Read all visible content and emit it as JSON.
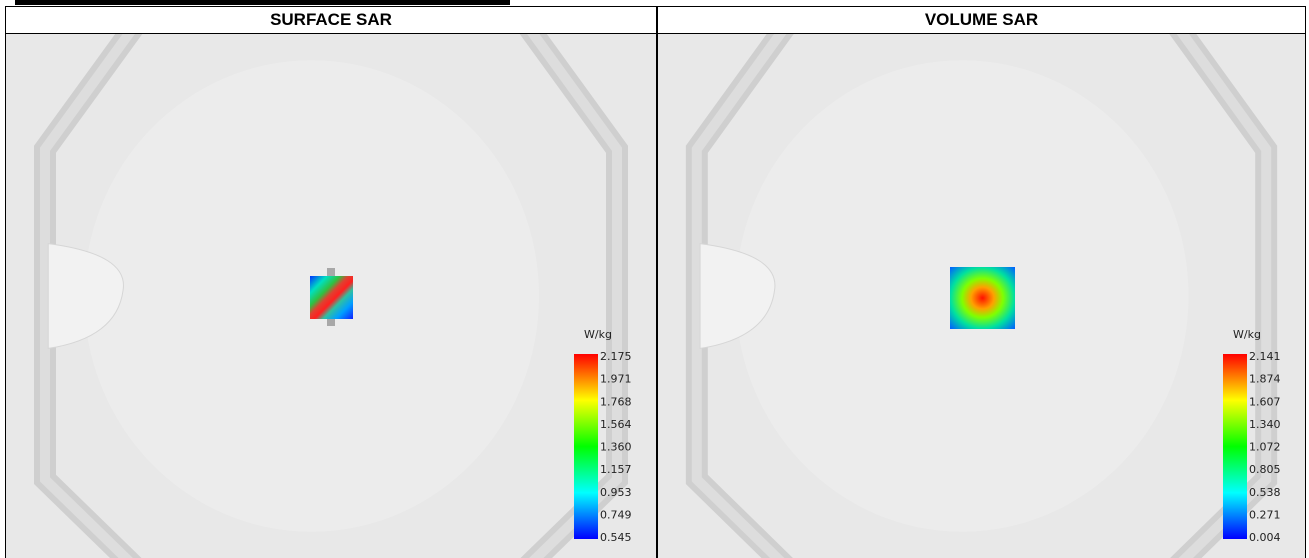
{
  "panels": [
    {
      "title": "SURFACE SAR",
      "unit": "W/kg",
      "scale": [
        "2.175",
        "1.971",
        "1.768",
        "1.564",
        "1.360",
        "1.157",
        "0.953",
        "0.749",
        "0.545"
      ]
    },
    {
      "title": "VOLUME SAR",
      "unit": "W/kg",
      "scale": [
        "2.141",
        "1.874",
        "1.607",
        "1.340",
        "1.072",
        "0.805",
        "0.538",
        "0.271",
        "0.004"
      ]
    }
  ]
}
